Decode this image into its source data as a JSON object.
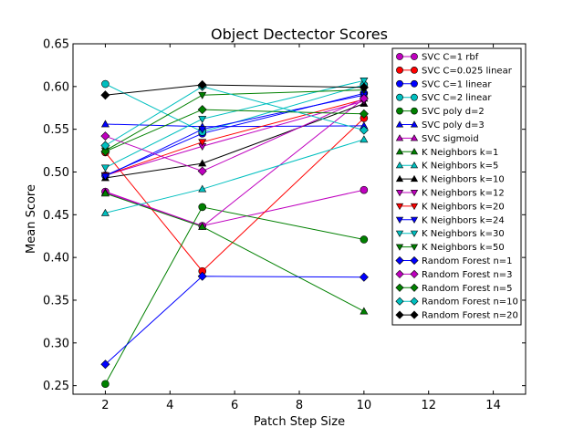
{
  "chart_data": {
    "type": "line",
    "title": "Object Dectector Scores",
    "xlabel": "Patch Step Size",
    "ylabel": "Mean Score",
    "xlim": [
      1,
      15
    ],
    "ylim": [
      0.24,
      0.65
    ],
    "xticks": [
      2,
      4,
      6,
      8,
      10,
      12,
      14
    ],
    "yticks": [
      0.25,
      0.3,
      0.35,
      0.4,
      0.45,
      0.5,
      0.55,
      0.6,
      0.65
    ],
    "xtick_labels": [
      "2",
      "4",
      "6",
      "8",
      "10",
      "12",
      "14"
    ],
    "ytick_labels": [
      "0.25",
      "0.30",
      "0.35",
      "0.40",
      "0.45",
      "0.50",
      "0.55",
      "0.60",
      "0.65"
    ],
    "grid": false,
    "legend_position": "top-right",
    "x": [
      2,
      5,
      10
    ],
    "series": [
      {
        "name": "SVC C=1 rbf",
        "color": "#bf00bf",
        "marker": "circle",
        "values": [
          0.477,
          0.437,
          0.479
        ]
      },
      {
        "name": "SVC C=0.025 linear",
        "color": "#ff0000",
        "marker": "circle",
        "values": [
          0.523,
          0.384,
          0.563
        ]
      },
      {
        "name": "SVC C=1 linear",
        "color": "#0000ff",
        "marker": "circle",
        "values": [
          0.496,
          0.545,
          0.592
        ]
      },
      {
        "name": "SVC C=2 linear",
        "color": "#00bfbf",
        "marker": "circle",
        "values": [
          0.603,
          0.547,
          0.602
        ]
      },
      {
        "name": "SVC poly d=2",
        "color": "#008000",
        "marker": "circle",
        "values": [
          0.252,
          0.459,
          0.421
        ]
      },
      {
        "name": "SVC poly d=3",
        "color": "#0000ff",
        "marker": "triangle-up",
        "values": [
          0.556,
          0.553,
          0.554
        ]
      },
      {
        "name": "SVC sigmoid",
        "color": "#bf00bf",
        "marker": "triangle-up",
        "values": [
          0.476,
          0.436,
          0.586
        ]
      },
      {
        "name": "K Neighbors k=1",
        "color": "#008000",
        "marker": "triangle-up",
        "values": [
          0.475,
          0.436,
          0.337
        ]
      },
      {
        "name": "K Neighbors k=5",
        "color": "#00bfbf",
        "marker": "triangle-up",
        "values": [
          0.452,
          0.48,
          0.538
        ]
      },
      {
        "name": "K Neighbors k=10",
        "color": "#000000",
        "marker": "triangle-up",
        "values": [
          0.493,
          0.51,
          0.58
        ]
      },
      {
        "name": "K Neighbors k=12",
        "color": "#bf00bf",
        "marker": "triangle-down",
        "values": [
          0.496,
          0.53,
          0.583
        ]
      },
      {
        "name": "K Neighbors k=20",
        "color": "#ff0000",
        "marker": "triangle-down",
        "values": [
          0.496,
          0.535,
          0.585
        ]
      },
      {
        "name": "K Neighbors k=24",
        "color": "#0000ff",
        "marker": "triangle-down",
        "values": [
          0.495,
          0.55,
          0.59
        ]
      },
      {
        "name": "K Neighbors k=30",
        "color": "#00bfbf",
        "marker": "triangle-down",
        "values": [
          0.505,
          0.562,
          0.607
        ]
      },
      {
        "name": "K Neighbors k=50",
        "color": "#008000",
        "marker": "triangle-down",
        "values": [
          0.525,
          0.59,
          0.596
        ]
      },
      {
        "name": "Random Forest n=1",
        "color": "#0000ff",
        "marker": "diamond",
        "values": [
          0.275,
          0.378,
          0.377
        ]
      },
      {
        "name": "Random Forest n=3",
        "color": "#bf00bf",
        "marker": "diamond",
        "values": [
          0.542,
          0.501,
          0.586
        ]
      },
      {
        "name": "Random Forest n=5",
        "color": "#008000",
        "marker": "diamond",
        "values": [
          0.524,
          0.573,
          0.568
        ]
      },
      {
        "name": "Random Forest n=10",
        "color": "#00bfbf",
        "marker": "diamond",
        "values": [
          0.531,
          0.6,
          0.549
        ]
      },
      {
        "name": "Random Forest n=20",
        "color": "#000000",
        "marker": "diamond",
        "values": [
          0.59,
          0.602,
          0.599
        ]
      }
    ]
  }
}
